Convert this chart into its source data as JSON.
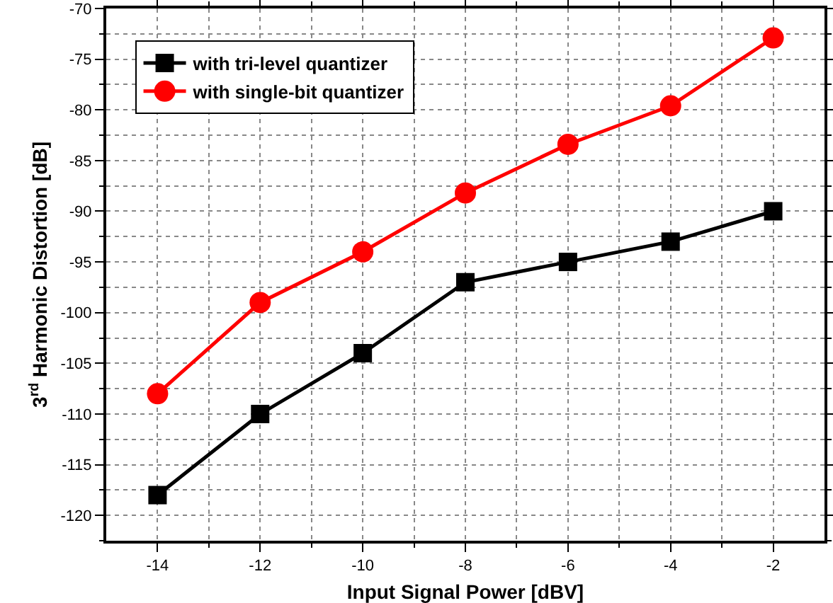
{
  "chart_data": {
    "type": "line",
    "xlabel": "Input Signal Power [dBV]",
    "ylabel": "3$^{rd}$ Harmonic Distortion [dB]",
    "x": [
      -14,
      -12,
      -10,
      -8,
      -6,
      -4,
      -2
    ],
    "series": [
      {
        "name": "with tri-level quantizer",
        "color": "#000000",
        "marker": "square",
        "values": [
          -118,
          -110,
          -104,
          -97,
          -95,
          -93,
          -90
        ]
      },
      {
        "name": "with single-bit quantizer",
        "color": "#ff0000",
        "marker": "circle",
        "values": [
          -108,
          -99,
          -94,
          -88.2,
          -83.4,
          -79.6,
          -72.9
        ]
      }
    ],
    "xlim": [
      -15,
      -1
    ],
    "xticks": [
      -14,
      -12,
      -10,
      -8,
      -6,
      -4,
      -2
    ],
    "ylim": [
      -122.5,
      -70
    ],
    "yticks": [
      -120,
      -115,
      -110,
      -105,
      -100,
      -95,
      -90,
      -85,
      -80,
      -75,
      -70
    ],
    "grid": true,
    "legend": "top left",
    "line_style": "solid"
  }
}
